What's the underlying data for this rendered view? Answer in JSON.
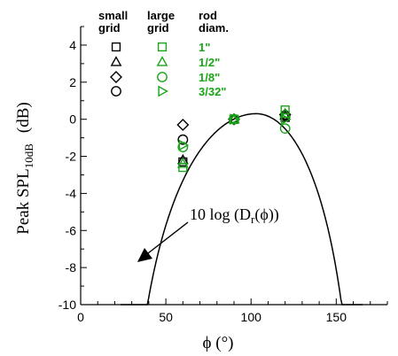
{
  "chart_data": {
    "type": "scatter",
    "xlabel": "ϕ (°)",
    "ylabel_main": "Peak SPL",
    "ylabel_sub": "10dB",
    "ylabel_unit": "(dB)",
    "xlim": [
      0,
      180
    ],
    "ylim": [
      -10,
      5
    ],
    "xticks": [
      0,
      50,
      100,
      150
    ],
    "yticks": [
      -10,
      -8,
      -6,
      -4,
      -2,
      0,
      2,
      4
    ],
    "legend": {
      "headers": [
        {
          "line1": "small",
          "line2": "grid"
        },
        {
          "line1": "large",
          "line2": "grid"
        },
        {
          "line1": "rod",
          "line2": "diam."
        }
      ],
      "rows": [
        {
          "marker": "square",
          "label": "1\""
        },
        {
          "marker": "triangle-up",
          "label": "1/2\""
        },
        {
          "marker": "diamond",
          "label": "1/8\""
        },
        {
          "marker": "circle",
          "label": "3/32\""
        }
      ],
      "large_grid_markers": [
        "square",
        "triangle-up",
        "circle",
        "triangle-right"
      ]
    },
    "colors": {
      "small_grid": "#000000",
      "large_grid": "#18a518"
    },
    "series": [
      {
        "group": "small grid",
        "rod": "1\"",
        "marker": "square",
        "x": [
          60,
          90,
          120
        ],
        "y": [
          -2.3,
          0.0,
          0.1
        ]
      },
      {
        "group": "small grid",
        "rod": "1/2\"",
        "marker": "triangle-up",
        "x": [
          60,
          90,
          120
        ],
        "y": [
          -2.2,
          0.0,
          0.2
        ]
      },
      {
        "group": "small grid",
        "rod": "1/8\"",
        "marker": "diamond",
        "x": [
          60,
          90,
          120
        ],
        "y": [
          -0.3,
          0.0,
          0.25
        ]
      },
      {
        "group": "small grid",
        "rod": "3/32\"",
        "marker": "circle",
        "x": [
          60,
          90,
          120
        ],
        "y": [
          -1.1,
          0.0,
          0.2
        ]
      },
      {
        "group": "large grid",
        "rod": "1\"",
        "marker": "square",
        "x": [
          60,
          90,
          120
        ],
        "y": [
          -2.6,
          0.0,
          0.5
        ]
      },
      {
        "group": "large grid",
        "rod": "1/2\"",
        "marker": "triangle-up",
        "x": [
          60,
          90,
          120
        ],
        "y": [
          -2.4,
          0.0,
          0.3
        ]
      },
      {
        "group": "large grid",
        "rod": "1/8\"",
        "marker": "circle",
        "x": [
          60,
          90,
          120
        ],
        "y": [
          -1.5,
          0.0,
          -0.5
        ]
      },
      {
        "group": "large grid",
        "rod": "3/32\"",
        "marker": "triangle-right",
        "x": [
          60,
          90,
          120
        ],
        "y": [
          -1.4,
          0.0,
          0.0
        ]
      }
    ],
    "curve": {
      "label_prefix": "10 log (D",
      "label_sub": "r",
      "label_suffix": "(ϕ))",
      "x_domain": [
        23.5,
        165.5
      ],
      "peak_x": 103,
      "peak_y": 0.3
    }
  }
}
